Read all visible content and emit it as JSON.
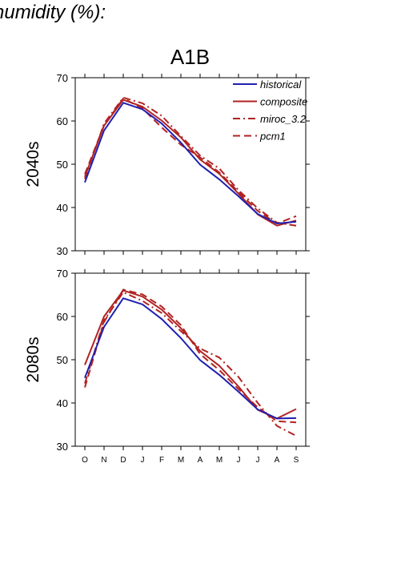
{
  "page": {
    "title": "humidity (%):",
    "scenario": "A1B"
  },
  "legend": [
    {
      "name": "historical",
      "color": "#2020b0",
      "dash": "solid"
    },
    {
      "name": "composite",
      "color": "#b22222",
      "dash": "solid"
    },
    {
      "name": "miroc_3.2",
      "color": "#b22222",
      "dash": "dashdot"
    },
    {
      "name": "pcm1",
      "color": "#b22222",
      "dash": "dashed"
    }
  ],
  "chart_data": [
    {
      "type": "line",
      "row_label": "2040s",
      "categories": [
        "O",
        "N",
        "D",
        "J",
        "F",
        "M",
        "A",
        "M",
        "J",
        "J",
        "A",
        "S"
      ],
      "ylim": [
        30,
        70
      ],
      "yticks": [
        30,
        40,
        50,
        60,
        70
      ],
      "show_x_labels": false,
      "series": [
        {
          "name": "historical",
          "values": [
            45.8,
            57.8,
            64.2,
            62.7,
            59.4,
            55.0,
            49.9,
            46.5,
            42.6,
            38.5,
            36.3,
            36.7
          ]
        },
        {
          "name": "composite",
          "values": [
            47.1,
            58.9,
            64.9,
            63.3,
            60.1,
            56.2,
            51.1,
            47.8,
            43.2,
            38.4,
            35.8,
            37.0
          ]
        },
        {
          "name": "miroc_3.2",
          "values": [
            46.6,
            59.4,
            65.4,
            64.1,
            61.2,
            56.5,
            52.0,
            49.0,
            44.0,
            39.8,
            36.5,
            35.8
          ]
        },
        {
          "name": "pcm1",
          "values": [
            47.7,
            59.0,
            65.2,
            62.9,
            58.5,
            54.5,
            51.6,
            48.1,
            43.6,
            39.2,
            36.3,
            38.0
          ]
        }
      ]
    },
    {
      "type": "line",
      "row_label": "2080s",
      "categories": [
        "O",
        "N",
        "D",
        "J",
        "F",
        "M",
        "A",
        "M",
        "J",
        "J",
        "A",
        "S"
      ],
      "ylim": [
        30,
        70
      ],
      "yticks": [
        30,
        40,
        50,
        60,
        70
      ],
      "show_x_labels": true,
      "series": [
        {
          "name": "historical",
          "values": [
            45.8,
            57.6,
            64.2,
            62.8,
            59.4,
            55.0,
            49.9,
            46.5,
            42.6,
            38.5,
            36.4,
            36.5
          ]
        },
        {
          "name": "composite",
          "values": [
            48.8,
            60.0,
            66.0,
            64.6,
            61.6,
            57.3,
            52.0,
            48.6,
            43.8,
            38.4,
            36.4,
            38.6
          ]
        },
        {
          "name": "miroc_3.2",
          "values": [
            44.5,
            59.1,
            65.6,
            63.6,
            60.8,
            56.6,
            52.6,
            50.5,
            46.0,
            40.0,
            34.7,
            32.4
          ]
        },
        {
          "name": "pcm1",
          "values": [
            43.6,
            58.7,
            66.2,
            65.1,
            62.3,
            58.0,
            51.3,
            47.6,
            43.2,
            39.0,
            35.8,
            35.5
          ]
        }
      ]
    }
  ]
}
